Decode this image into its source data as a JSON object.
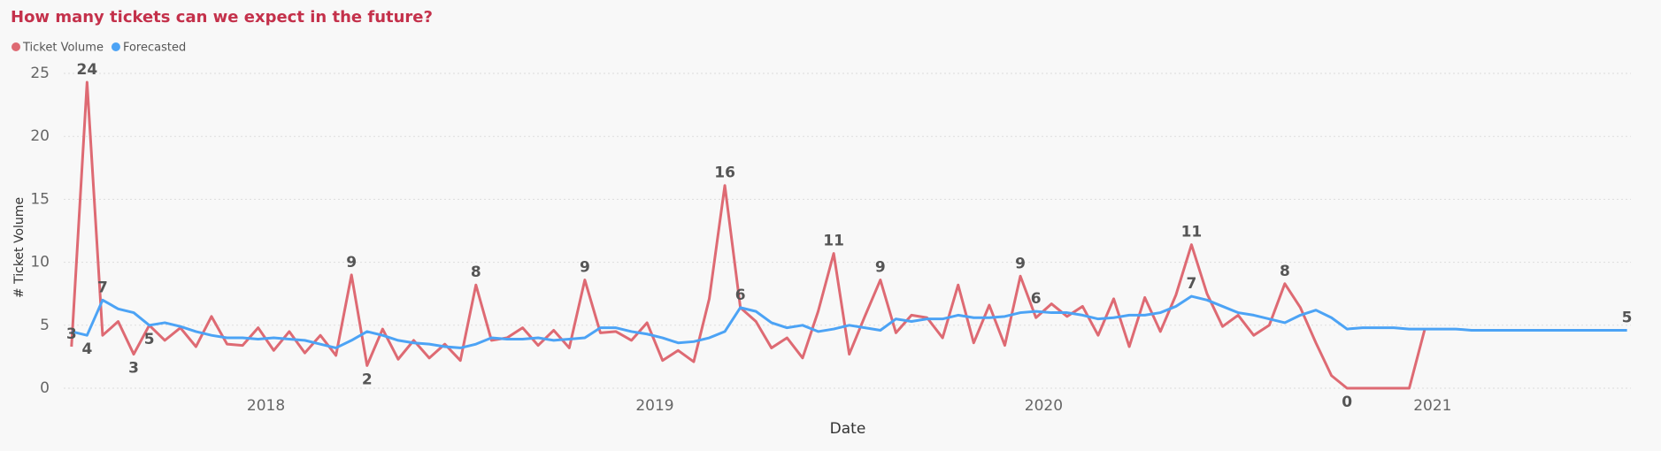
{
  "chart_data": {
    "type": "line",
    "title": "How many tickets can we expect in the future?",
    "x_label": "Date",
    "y_label": "# Ticket Volume",
    "x": [
      2017.5,
      2017.54,
      2017.58,
      2017.62,
      2017.66,
      2017.7,
      2017.74,
      2017.78,
      2017.82,
      2017.86,
      2017.9,
      2017.94,
      2017.98,
      2018.02,
      2018.06,
      2018.1,
      2018.14,
      2018.18,
      2018.22,
      2018.26,
      2018.3,
      2018.34,
      2018.38,
      2018.42,
      2018.46,
      2018.5,
      2018.54,
      2018.58,
      2018.62,
      2018.66,
      2018.7,
      2018.74,
      2018.78,
      2018.82,
      2018.86,
      2018.9,
      2018.94,
      2018.98,
      2019.02,
      2019.06,
      2019.1,
      2019.14,
      2019.18,
      2019.22,
      2019.26,
      2019.3,
      2019.34,
      2019.38,
      2019.42,
      2019.46,
      2019.5,
      2019.54,
      2019.58,
      2019.62,
      2019.66,
      2019.7,
      2019.74,
      2019.78,
      2019.82,
      2019.86,
      2019.9,
      2019.94,
      2019.98,
      2020.02,
      2020.06,
      2020.1,
      2020.14,
      2020.18,
      2020.22,
      2020.26,
      2020.3,
      2020.34,
      2020.38,
      2020.42,
      2020.46,
      2020.5,
      2020.54,
      2020.58,
      2020.62,
      2020.66,
      2020.7,
      2020.74,
      2020.78,
      2020.82,
      2020.86,
      2020.9,
      2020.94,
      2020.98,
      2021.02,
      2021.06,
      2021.1,
      2021.14,
      2021.18,
      2021.22,
      2021.26,
      2021.3,
      2021.34,
      2021.38,
      2021.42,
      2021.46,
      2021.5
    ],
    "series": [
      {
        "name": "Ticket Volume",
        "color": "#de6a73",
        "values": [
          3.3,
          24.3,
          4.2,
          5.3,
          2.7,
          5.0,
          3.8,
          4.8,
          3.3,
          5.7,
          3.5,
          3.4,
          4.8,
          3.0,
          4.5,
          2.8,
          4.2,
          2.6,
          9.0,
          1.8,
          4.7,
          2.3,
          3.8,
          2.4,
          3.5,
          2.2,
          8.2,
          3.8,
          4.0,
          4.8,
          3.4,
          4.6,
          3.2,
          8.6,
          4.4,
          4.5,
          3.8,
          5.2,
          2.2,
          3.0,
          2.1,
          7.1,
          16.1,
          6.4,
          5.3,
          3.2,
          4.0,
          2.4,
          6.1,
          10.7,
          2.7,
          5.7,
          8.6,
          4.4,
          5.8,
          5.6,
          4.0,
          8.2,
          3.6,
          6.6,
          3.4,
          8.9,
          5.6,
          6.7,
          5.7,
          6.5,
          4.2,
          7.1,
          3.3,
          7.2,
          4.5,
          7.4,
          11.4,
          7.5,
          4.9,
          5.8,
          4.2,
          5.0,
          8.3,
          6.4,
          3.6,
          1.0,
          0,
          0,
          0,
          0,
          0,
          4.7,
          null,
          null,
          null,
          null,
          null,
          null,
          null,
          null,
          null,
          null,
          null,
          null,
          null
        ],
        "value_labels": [
          "3",
          "24",
          null,
          null,
          "3",
          null,
          null,
          null,
          null,
          null,
          null,
          null,
          null,
          null,
          null,
          null,
          null,
          null,
          "9",
          "2",
          null,
          null,
          null,
          null,
          null,
          null,
          "8",
          null,
          null,
          null,
          null,
          null,
          null,
          "9",
          null,
          null,
          null,
          null,
          null,
          null,
          null,
          null,
          "16",
          null,
          null,
          null,
          null,
          null,
          null,
          "11",
          null,
          null,
          "9",
          null,
          null,
          null,
          null,
          null,
          null,
          null,
          null,
          "9",
          null,
          null,
          null,
          null,
          null,
          null,
          null,
          null,
          null,
          null,
          "11",
          null,
          null,
          null,
          null,
          null,
          "8",
          null,
          null,
          null,
          "0",
          null,
          null,
          null,
          null,
          null,
          null,
          null,
          null,
          null,
          null,
          null,
          null,
          null,
          null,
          null,
          null,
          null,
          null
        ]
      },
      {
        "name": "Forecasted",
        "color": "#4ca3f5",
        "values": [
          4.5,
          4.2,
          7.0,
          6.3,
          6.0,
          5.0,
          5.2,
          4.9,
          4.5,
          4.2,
          4.0,
          4.0,
          3.9,
          4.0,
          3.9,
          3.8,
          3.5,
          3.2,
          3.8,
          4.5,
          4.2,
          3.8,
          3.6,
          3.5,
          3.3,
          3.2,
          3.5,
          4.0,
          3.9,
          3.9,
          4.0,
          3.8,
          3.9,
          4.0,
          4.8,
          4.8,
          4.5,
          4.3,
          4.0,
          3.6,
          3.7,
          4.0,
          4.5,
          6.4,
          6.1,
          5.2,
          4.8,
          5.0,
          4.5,
          4.7,
          5.0,
          4.8,
          4.6,
          5.5,
          5.3,
          5.5,
          5.5,
          5.8,
          5.6,
          5.6,
          5.7,
          6.0,
          6.1,
          6.0,
          6.0,
          5.8,
          5.5,
          5.6,
          5.8,
          5.8,
          6.0,
          6.5,
          7.3,
          7.0,
          6.5,
          6.0,
          5.8,
          5.5,
          5.2,
          5.8,
          6.2,
          5.6,
          4.7,
          4.8,
          4.8,
          4.8,
          4.7,
          4.7,
          4.7,
          4.7,
          4.6,
          4.6,
          4.6,
          4.6,
          4.6,
          4.6,
          4.6,
          4.6,
          4.6,
          4.6,
          4.6
        ],
        "value_labels": [
          null,
          "4",
          "7",
          null,
          null,
          "5",
          null,
          null,
          null,
          null,
          null,
          null,
          null,
          null,
          null,
          null,
          null,
          null,
          null,
          null,
          null,
          null,
          null,
          null,
          null,
          null,
          null,
          null,
          null,
          null,
          null,
          null,
          null,
          null,
          null,
          null,
          null,
          null,
          null,
          null,
          null,
          null,
          null,
          "6",
          null,
          null,
          null,
          null,
          null,
          null,
          null,
          null,
          null,
          null,
          null,
          null,
          null,
          null,
          null,
          null,
          null,
          null,
          "6",
          null,
          null,
          null,
          null,
          null,
          null,
          null,
          null,
          null,
          "7",
          null,
          null,
          null,
          null,
          null,
          null,
          null,
          null,
          null,
          null,
          null,
          null,
          null,
          null,
          null,
          null,
          null,
          null,
          null,
          null,
          null,
          null,
          null,
          null,
          null,
          null,
          null,
          "5"
        ]
      }
    ],
    "xlim": [
      2017.48,
      2021.51
    ],
    "xticks": [
      2018,
      2019,
      2020,
      2021
    ],
    "ylim": [
      0,
      25
    ],
    "yticks": [
      0,
      5,
      10,
      15,
      20,
      25
    ],
    "grid": true
  }
}
